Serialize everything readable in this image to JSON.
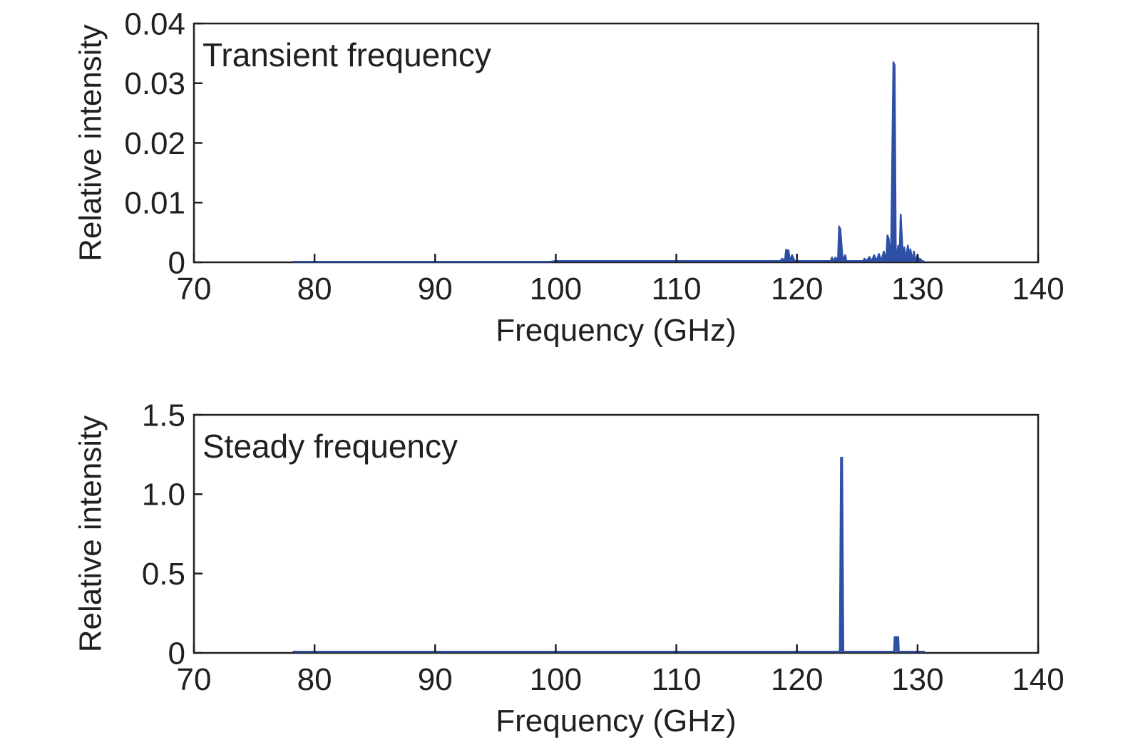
{
  "chart_data": [
    {
      "type": "line",
      "title": "",
      "annotation": "Transient frequency",
      "xlabel": "Frequency (GHz)",
      "ylabel": "Relative intensity",
      "xlim": [
        70,
        140
      ],
      "ylim": [
        0,
        0.04
      ],
      "xticks": [
        70,
        80,
        90,
        100,
        110,
        120,
        130,
        140
      ],
      "xtick_labels": [
        "70",
        "80",
        "90",
        "100",
        "110",
        "120",
        "130",
        "140"
      ],
      "yticks": [
        0,
        0.01,
        0.02,
        0.03,
        0.04
      ],
      "ytick_labels": [
        "0",
        "0.01",
        "0.02",
        "0.03",
        "0.04"
      ],
      "grid": false,
      "color": "#2e4fa6",
      "series": [
        {
          "x": [
            78.2,
            99.5,
            100,
            118.6,
            118.8,
            119.0,
            119.1,
            119.3,
            119.4,
            119.6,
            119.8,
            120.0,
            122.8,
            122.9,
            123.0,
            123.2,
            123.4,
            123.5,
            123.6,
            123.8,
            124.0,
            124.1,
            124.3,
            124.6,
            124.8,
            125.5,
            125.6,
            125.8,
            126.0,
            126.2,
            126.4,
            126.6,
            126.8,
            127.0,
            127.2,
            127.4,
            127.5,
            127.6,
            127.8,
            128.0,
            128.1,
            128.2,
            128.4,
            128.5,
            128.6,
            128.8,
            128.9,
            129.0,
            129.2,
            129.3,
            129.4,
            129.6,
            129.7,
            129.8,
            130.0,
            130.1,
            130.2,
            130.4,
            130.6
          ],
          "y": [
            0.0001,
            0.0001,
            0.0002,
            0.0002,
            0.0006,
            0.0002,
            0.0021,
            0.002,
            0.0002,
            0.0012,
            0.0002,
            0.0002,
            0.0002,
            0.0008,
            0.0002,
            0.0008,
            0.0002,
            0.006,
            0.0055,
            0.0002,
            0.0012,
            0.0002,
            0.0002,
            0.0002,
            0.0002,
            0.0002,
            0.0006,
            0.0002,
            0.0009,
            0.0002,
            0.0012,
            0.0002,
            0.0014,
            0.0002,
            0.0018,
            0.0002,
            0.0045,
            0.004,
            0.0002,
            0.0335,
            0.033,
            0.0002,
            0.0028,
            0.0002,
            0.008,
            0.0002,
            0.0025,
            0.0002,
            0.0028,
            0.0002,
            0.0022,
            0.0002,
            0.0018,
            0.0002,
            0.0012,
            0.0002,
            0.0006,
            0.0002,
            0.0001
          ]
        }
      ]
    },
    {
      "type": "line",
      "title": "",
      "annotation": "Steady frequency",
      "xlabel": "Frequency (GHz)",
      "ylabel": "Relative intensity",
      "xlim": [
        70,
        140
      ],
      "ylim": [
        0,
        1.5
      ],
      "xticks": [
        70,
        80,
        90,
        100,
        110,
        120,
        130,
        140
      ],
      "xtick_labels": [
        "70",
        "80",
        "90",
        "100",
        "110",
        "120",
        "130",
        "140"
      ],
      "yticks": [
        0,
        0.5,
        1.0,
        1.5
      ],
      "ytick_labels": [
        "0",
        "0.5",
        "1.0",
        "1.5"
      ],
      "grid": false,
      "color": "#2e4fa6",
      "series": [
        {
          "x": [
            78.2,
            123.55,
            123.65,
            123.75,
            123.85,
            128.05,
            128.1,
            128.4,
            128.45,
            130.6
          ],
          "y": [
            0.008,
            0.008,
            1.23,
            1.23,
            0.008,
            0.008,
            0.1,
            0.1,
            0.008,
            0.008
          ]
        }
      ]
    }
  ]
}
